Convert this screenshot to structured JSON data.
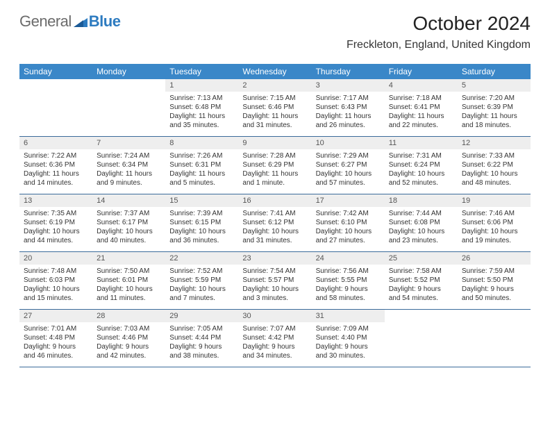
{
  "logo": {
    "part1": "General",
    "part2": "Blue"
  },
  "title": "October 2024",
  "location": "Freckleton, England, United Kingdom",
  "colors": {
    "header_bg": "#3a87c8",
    "header_text": "#ffffff",
    "daynum_bg": "#eeeeee",
    "row_border": "#3a6a9a",
    "brand_blue": "#2d7bc0",
    "brand_gray": "#6b6b6b"
  },
  "dayNames": [
    "Sunday",
    "Monday",
    "Tuesday",
    "Wednesday",
    "Thursday",
    "Friday",
    "Saturday"
  ],
  "weeks": [
    [
      {
        "day": "",
        "sunrise": "",
        "sunset": "",
        "daylight": ""
      },
      {
        "day": "",
        "sunrise": "",
        "sunset": "",
        "daylight": ""
      },
      {
        "day": "1",
        "sunrise": "Sunrise: 7:13 AM",
        "sunset": "Sunset: 6:48 PM",
        "daylight": "Daylight: 11 hours and 35 minutes."
      },
      {
        "day": "2",
        "sunrise": "Sunrise: 7:15 AM",
        "sunset": "Sunset: 6:46 PM",
        "daylight": "Daylight: 11 hours and 31 minutes."
      },
      {
        "day": "3",
        "sunrise": "Sunrise: 7:17 AM",
        "sunset": "Sunset: 6:43 PM",
        "daylight": "Daylight: 11 hours and 26 minutes."
      },
      {
        "day": "4",
        "sunrise": "Sunrise: 7:18 AM",
        "sunset": "Sunset: 6:41 PM",
        "daylight": "Daylight: 11 hours and 22 minutes."
      },
      {
        "day": "5",
        "sunrise": "Sunrise: 7:20 AM",
        "sunset": "Sunset: 6:39 PM",
        "daylight": "Daylight: 11 hours and 18 minutes."
      }
    ],
    [
      {
        "day": "6",
        "sunrise": "Sunrise: 7:22 AM",
        "sunset": "Sunset: 6:36 PM",
        "daylight": "Daylight: 11 hours and 14 minutes."
      },
      {
        "day": "7",
        "sunrise": "Sunrise: 7:24 AM",
        "sunset": "Sunset: 6:34 PM",
        "daylight": "Daylight: 11 hours and 9 minutes."
      },
      {
        "day": "8",
        "sunrise": "Sunrise: 7:26 AM",
        "sunset": "Sunset: 6:31 PM",
        "daylight": "Daylight: 11 hours and 5 minutes."
      },
      {
        "day": "9",
        "sunrise": "Sunrise: 7:28 AM",
        "sunset": "Sunset: 6:29 PM",
        "daylight": "Daylight: 11 hours and 1 minute."
      },
      {
        "day": "10",
        "sunrise": "Sunrise: 7:29 AM",
        "sunset": "Sunset: 6:27 PM",
        "daylight": "Daylight: 10 hours and 57 minutes."
      },
      {
        "day": "11",
        "sunrise": "Sunrise: 7:31 AM",
        "sunset": "Sunset: 6:24 PM",
        "daylight": "Daylight: 10 hours and 52 minutes."
      },
      {
        "day": "12",
        "sunrise": "Sunrise: 7:33 AM",
        "sunset": "Sunset: 6:22 PM",
        "daylight": "Daylight: 10 hours and 48 minutes."
      }
    ],
    [
      {
        "day": "13",
        "sunrise": "Sunrise: 7:35 AM",
        "sunset": "Sunset: 6:19 PM",
        "daylight": "Daylight: 10 hours and 44 minutes."
      },
      {
        "day": "14",
        "sunrise": "Sunrise: 7:37 AM",
        "sunset": "Sunset: 6:17 PM",
        "daylight": "Daylight: 10 hours and 40 minutes."
      },
      {
        "day": "15",
        "sunrise": "Sunrise: 7:39 AM",
        "sunset": "Sunset: 6:15 PM",
        "daylight": "Daylight: 10 hours and 36 minutes."
      },
      {
        "day": "16",
        "sunrise": "Sunrise: 7:41 AM",
        "sunset": "Sunset: 6:12 PM",
        "daylight": "Daylight: 10 hours and 31 minutes."
      },
      {
        "day": "17",
        "sunrise": "Sunrise: 7:42 AM",
        "sunset": "Sunset: 6:10 PM",
        "daylight": "Daylight: 10 hours and 27 minutes."
      },
      {
        "day": "18",
        "sunrise": "Sunrise: 7:44 AM",
        "sunset": "Sunset: 6:08 PM",
        "daylight": "Daylight: 10 hours and 23 minutes."
      },
      {
        "day": "19",
        "sunrise": "Sunrise: 7:46 AM",
        "sunset": "Sunset: 6:06 PM",
        "daylight": "Daylight: 10 hours and 19 minutes."
      }
    ],
    [
      {
        "day": "20",
        "sunrise": "Sunrise: 7:48 AM",
        "sunset": "Sunset: 6:03 PM",
        "daylight": "Daylight: 10 hours and 15 minutes."
      },
      {
        "day": "21",
        "sunrise": "Sunrise: 7:50 AM",
        "sunset": "Sunset: 6:01 PM",
        "daylight": "Daylight: 10 hours and 11 minutes."
      },
      {
        "day": "22",
        "sunrise": "Sunrise: 7:52 AM",
        "sunset": "Sunset: 5:59 PM",
        "daylight": "Daylight: 10 hours and 7 minutes."
      },
      {
        "day": "23",
        "sunrise": "Sunrise: 7:54 AM",
        "sunset": "Sunset: 5:57 PM",
        "daylight": "Daylight: 10 hours and 3 minutes."
      },
      {
        "day": "24",
        "sunrise": "Sunrise: 7:56 AM",
        "sunset": "Sunset: 5:55 PM",
        "daylight": "Daylight: 9 hours and 58 minutes."
      },
      {
        "day": "25",
        "sunrise": "Sunrise: 7:58 AM",
        "sunset": "Sunset: 5:52 PM",
        "daylight": "Daylight: 9 hours and 54 minutes."
      },
      {
        "day": "26",
        "sunrise": "Sunrise: 7:59 AM",
        "sunset": "Sunset: 5:50 PM",
        "daylight": "Daylight: 9 hours and 50 minutes."
      }
    ],
    [
      {
        "day": "27",
        "sunrise": "Sunrise: 7:01 AM",
        "sunset": "Sunset: 4:48 PM",
        "daylight": "Daylight: 9 hours and 46 minutes."
      },
      {
        "day": "28",
        "sunrise": "Sunrise: 7:03 AM",
        "sunset": "Sunset: 4:46 PM",
        "daylight": "Daylight: 9 hours and 42 minutes."
      },
      {
        "day": "29",
        "sunrise": "Sunrise: 7:05 AM",
        "sunset": "Sunset: 4:44 PM",
        "daylight": "Daylight: 9 hours and 38 minutes."
      },
      {
        "day": "30",
        "sunrise": "Sunrise: 7:07 AM",
        "sunset": "Sunset: 4:42 PM",
        "daylight": "Daylight: 9 hours and 34 minutes."
      },
      {
        "day": "31",
        "sunrise": "Sunrise: 7:09 AM",
        "sunset": "Sunset: 4:40 PM",
        "daylight": "Daylight: 9 hours and 30 minutes."
      },
      {
        "day": "",
        "sunrise": "",
        "sunset": "",
        "daylight": ""
      },
      {
        "day": "",
        "sunrise": "",
        "sunset": "",
        "daylight": ""
      }
    ]
  ]
}
